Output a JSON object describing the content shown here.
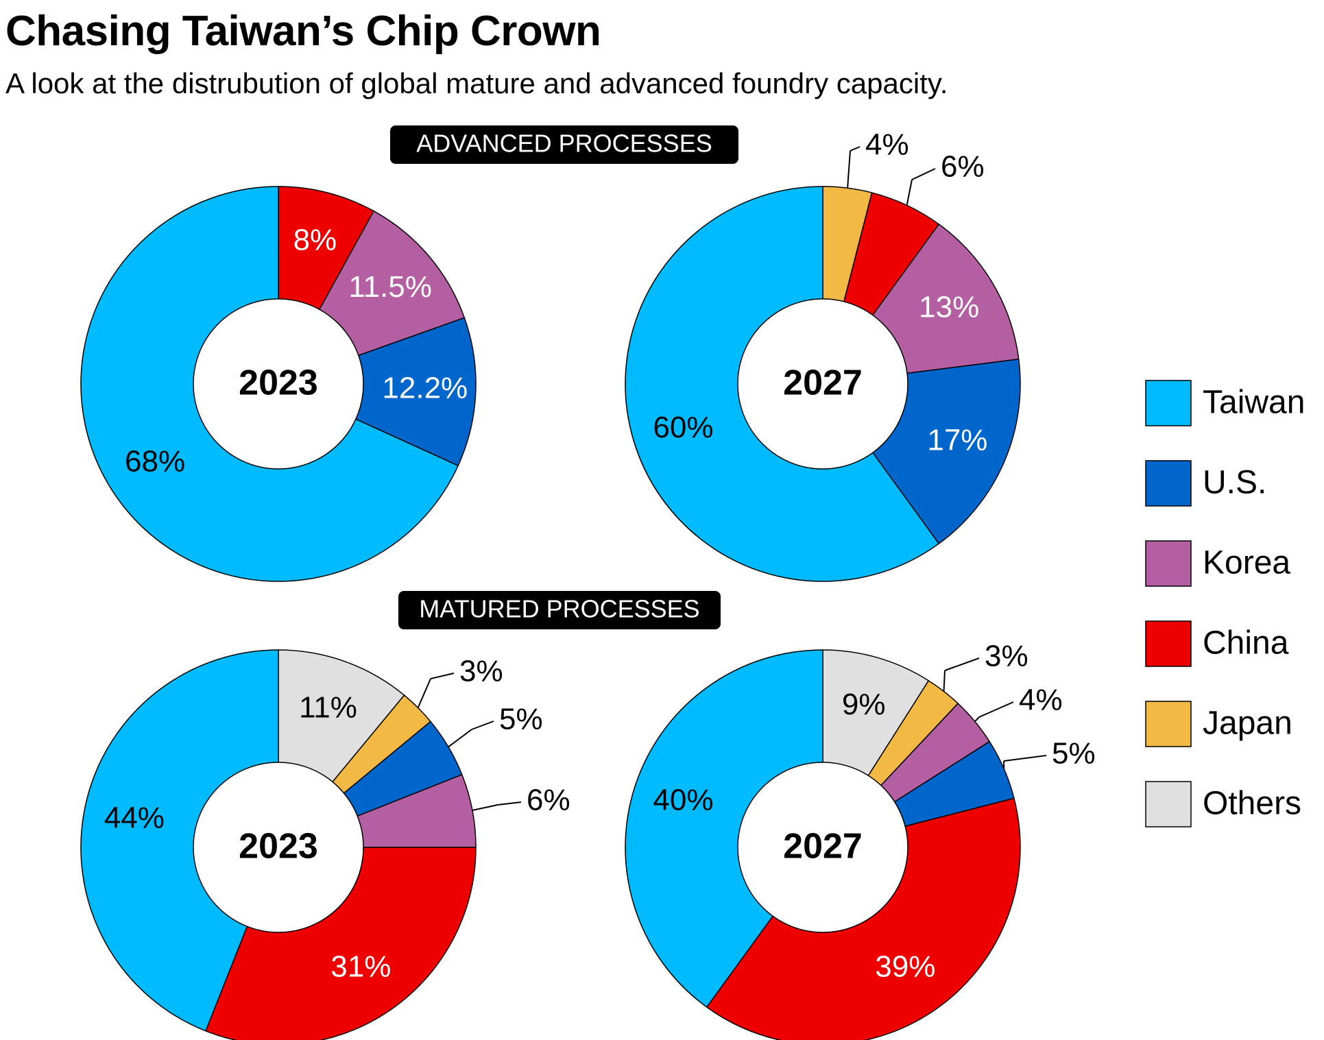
{
  "title": "Chasing Taiwan’s Chip Crown",
  "subtitle": "A look at the distrubution of global mature and advanced foundry capacity.",
  "colors": {
    "Taiwan": "#00bbff",
    "U.S.": "#0066cc",
    "Korea": "#b55fa3",
    "China": "#ee0000",
    "Japan": "#f2b944",
    "Others": "#e0e0e0",
    "badge_bg": "#000000",
    "badge_text": "#ffffff"
  },
  "legend": {
    "position": "right",
    "entries": [
      "Taiwan",
      "U.S.",
      "Korea",
      "China",
      "Japan",
      "Others"
    ]
  },
  "chart_data": [
    {
      "type": "pie",
      "section": "ADVANCED PROCESSES",
      "center_label": "2023",
      "slices": [
        {
          "name": "China",
          "value": 8,
          "label": "8%"
        },
        {
          "name": "Korea",
          "value": 11.5,
          "label": "11.5%"
        },
        {
          "name": "U.S.",
          "value": 12.2,
          "label": "12.2%"
        },
        {
          "name": "Taiwan",
          "value": 68,
          "label": "68%"
        }
      ]
    },
    {
      "type": "pie",
      "section": "ADVANCED PROCESSES",
      "center_label": "2027",
      "slices": [
        {
          "name": "Japan",
          "value": 4,
          "label": "4%"
        },
        {
          "name": "China",
          "value": 6,
          "label": "6%"
        },
        {
          "name": "Korea",
          "value": 13,
          "label": "13%"
        },
        {
          "name": "U.S.",
          "value": 17,
          "label": "17%"
        },
        {
          "name": "Taiwan",
          "value": 60,
          "label": "60%"
        }
      ]
    },
    {
      "type": "pie",
      "section": "MATURED PROCESSES",
      "center_label": "2023",
      "slices": [
        {
          "name": "Others",
          "value": 11,
          "label": "11%"
        },
        {
          "name": "Japan",
          "value": 3,
          "label": "3%"
        },
        {
          "name": "U.S.",
          "value": 5,
          "label": "5%"
        },
        {
          "name": "Korea",
          "value": 6,
          "label": "6%"
        },
        {
          "name": "China",
          "value": 31,
          "label": "31%"
        },
        {
          "name": "Taiwan",
          "value": 44,
          "label": "44%"
        }
      ]
    },
    {
      "type": "pie",
      "section": "MATURED PROCESSES",
      "center_label": "2027",
      "slices": [
        {
          "name": "Others",
          "value": 9,
          "label": "9%"
        },
        {
          "name": "Japan",
          "value": 3,
          "label": "3%"
        },
        {
          "name": "Korea",
          "value": 4,
          "label": "4%"
        },
        {
          "name": "U.S.",
          "value": 5,
          "label": "5%"
        },
        {
          "name": "China",
          "value": 39,
          "label": "39%"
        },
        {
          "name": "Taiwan",
          "value": 40,
          "label": "40%"
        }
      ]
    }
  ]
}
